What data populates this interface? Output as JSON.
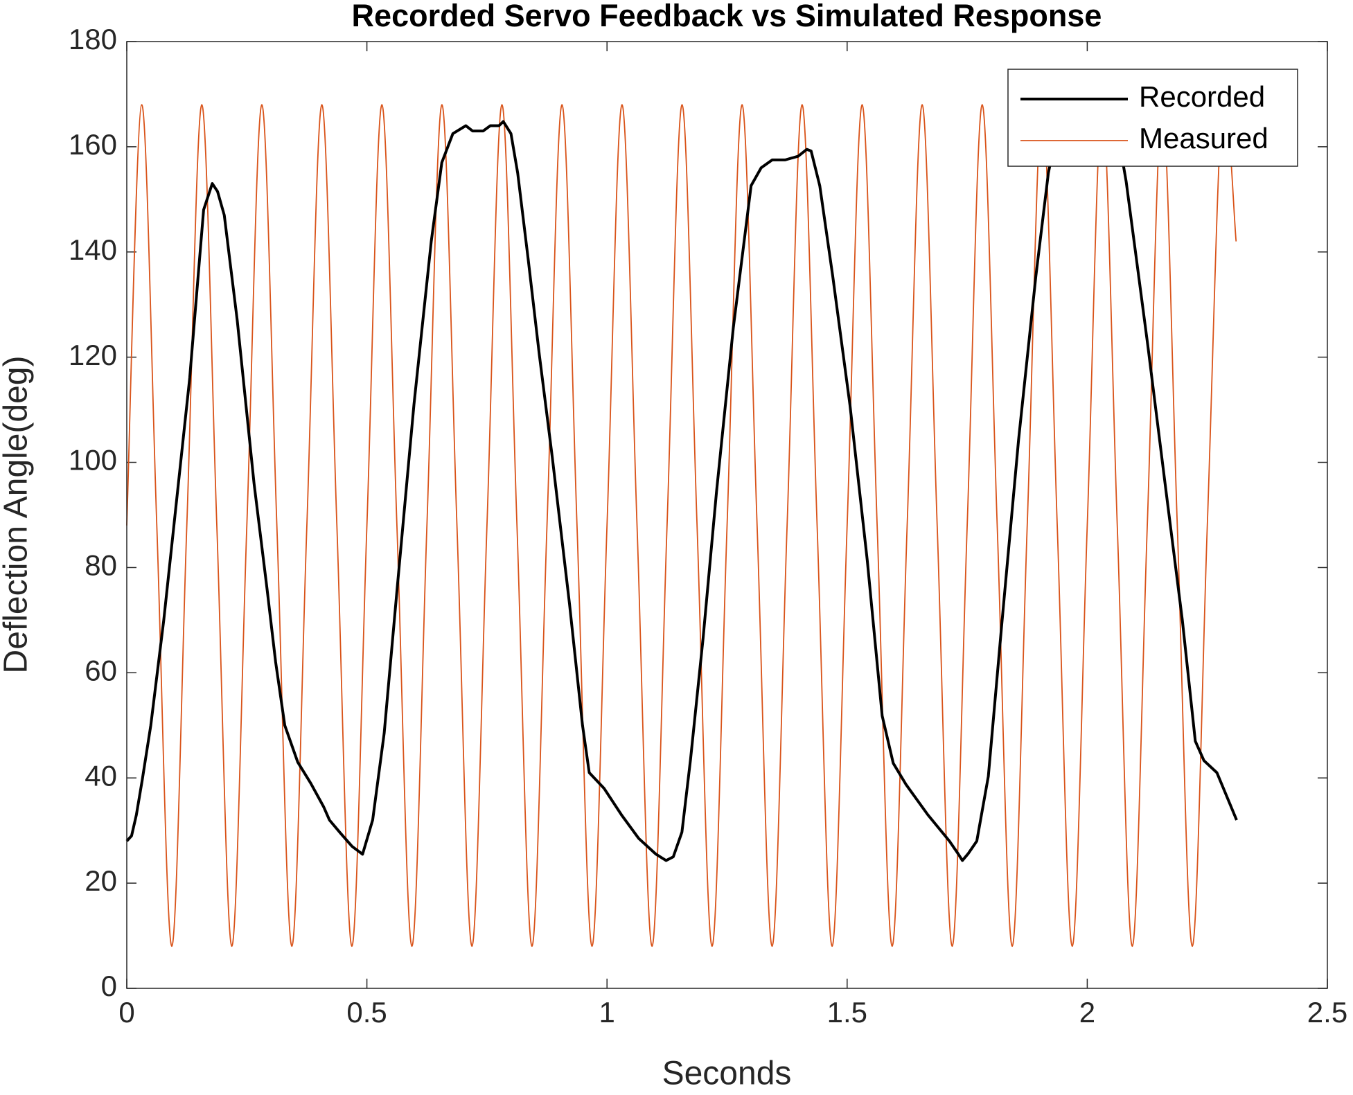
{
  "chart_data": {
    "type": "line",
    "title": "Recorded Servo Feedback vs Simulated Response",
    "x_label": "Seconds",
    "y_label": "Deflection Angle(deg)",
    "xlim": [
      0,
      2.5
    ],
    "xticks": [
      0,
      0.5,
      1,
      1.5,
      2,
      2.5
    ],
    "ylim": [
      0,
      180
    ],
    "yticks": [
      0,
      20,
      40,
      60,
      80,
      100,
      120,
      140,
      160,
      180
    ],
    "grid": false,
    "legend": "northeast",
    "series": [
      {
        "name": "Recorded",
        "color": "#000000",
        "smooth": false,
        "x": [
          0,
          0.01,
          0.02,
          0.032,
          0.05,
          0.077,
          0.104,
          0.131,
          0.16,
          0.178,
          0.189,
          0.203,
          0.23,
          0.265,
          0.292,
          0.31,
          0.329,
          0.356,
          0.383,
          0.41,
          0.422,
          0.445,
          0.469,
          0.491,
          0.512,
          0.536,
          0.562,
          0.598,
          0.634,
          0.656,
          0.679,
          0.706,
          0.72,
          0.742,
          0.757,
          0.775,
          0.784,
          0.8,
          0.814,
          0.836,
          0.859,
          0.886,
          0.922,
          0.949,
          0.963,
          0.994,
          1.03,
          1.066,
          1.102,
          1.123,
          1.138,
          1.156,
          1.174,
          1.2,
          1.228,
          1.263,
          1.3,
          1.321,
          1.344,
          1.371,
          1.398,
          1.416,
          1.425,
          1.443,
          1.47,
          1.506,
          1.542,
          1.573,
          1.596,
          1.623,
          1.668,
          1.713,
          1.731,
          1.74,
          1.752,
          1.77,
          1.794,
          1.821,
          1.857,
          1.893,
          1.919,
          1.937,
          1.973,
          2.018,
          2.063,
          2.081,
          2.1,
          2.126,
          2.162,
          2.198,
          2.225,
          2.243,
          2.27,
          2.311
        ],
        "values": [
          28,
          29,
          33,
          39.5,
          50,
          70,
          93,
          116,
          148,
          153,
          151.5,
          147,
          127,
          96,
          76,
          62,
          50,
          43,
          39,
          34.5,
          32,
          29.5,
          27,
          25.5,
          32,
          48.5,
          75,
          111,
          142,
          157,
          162.5,
          164,
          163,
          163,
          164,
          164,
          164.8,
          162.5,
          155,
          138.5,
          120.5,
          101,
          73,
          50,
          41,
          38,
          33,
          28.5,
          25.5,
          24.3,
          25,
          29.7,
          43.6,
          66.5,
          94.4,
          125.6,
          152.6,
          156,
          157.5,
          157.5,
          158.2,
          159.5,
          159.2,
          152.6,
          135.4,
          110.8,
          81.3,
          51.8,
          42.8,
          38.7,
          33,
          28,
          25.6,
          24.3,
          25.6,
          28,
          40.3,
          68.2,
          104.3,
          135.4,
          155,
          163,
          165,
          165,
          163,
          153.4,
          140.3,
          122.3,
          96,
          70,
          47,
          43.3,
          41,
          32
        ]
      },
      {
        "name": "Measured",
        "color": "#d95319",
        "smooth": true,
        "x": [
          0,
          0.03125,
          0.0625,
          0.09375,
          0.125,
          0.15625,
          0.1875,
          0.21875,
          0.25,
          0.28125,
          0.3125,
          0.34375,
          0.375,
          0.40625,
          0.4375,
          0.46875,
          0.5,
          0.53125,
          0.5625,
          0.59375,
          0.625,
          0.65625,
          0.6875,
          0.71875,
          0.75,
          0.78125,
          0.8125,
          0.84375,
          0.875,
          0.90625,
          0.9375,
          0.96875,
          1,
          1.03125,
          1.0625,
          1.09375,
          1.125,
          1.15625,
          1.1875,
          1.21875,
          1.25,
          1.28125,
          1.3125,
          1.34375,
          1.375,
          1.40625,
          1.4375,
          1.46875,
          1.5,
          1.53125,
          1.5625,
          1.59375,
          1.625,
          1.65625,
          1.6875,
          1.71875,
          1.75,
          1.78125,
          1.8125,
          1.84375,
          1.875,
          1.90625,
          1.9375,
          1.96875,
          2,
          2.03125,
          2.0625,
          2.09375,
          2.125,
          2.15625,
          2.1875,
          2.21875,
          2.25,
          2.28125,
          2.31
        ],
        "values": [
          88,
          168,
          88,
          8,
          88,
          168,
          88,
          8,
          88,
          168,
          88,
          8,
          88,
          168,
          88,
          8,
          88,
          168,
          88,
          8,
          88,
          168,
          88,
          8,
          88,
          168,
          88,
          8,
          88,
          168,
          88,
          8,
          88,
          168,
          88,
          8,
          88,
          168,
          88,
          8,
          88,
          168,
          88,
          8,
          88,
          168,
          88,
          8,
          88,
          168,
          88,
          8,
          88,
          168,
          88,
          8,
          88,
          168,
          88,
          8,
          88,
          168,
          88,
          8,
          88,
          168,
          88,
          8,
          88,
          168,
          88,
          8,
          88,
          168,
          142
        ]
      }
    ]
  }
}
